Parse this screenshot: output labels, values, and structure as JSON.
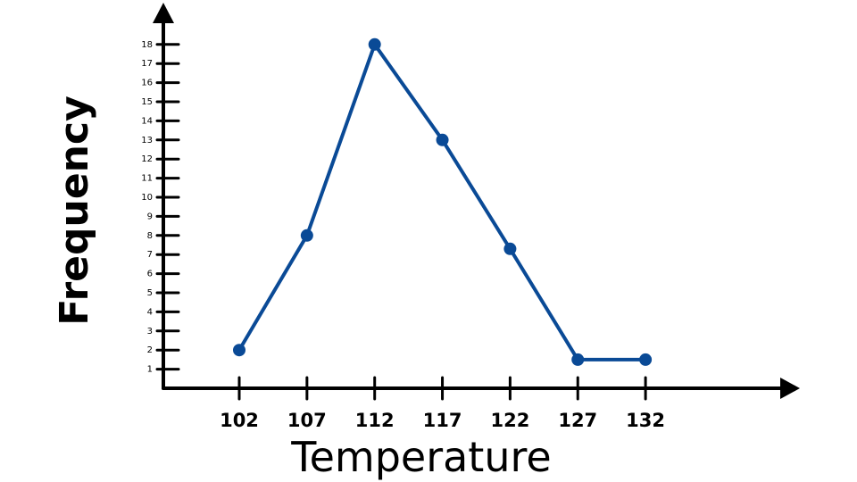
{
  "chart_data": {
    "type": "line",
    "title": "",
    "xlabel": "Temperature",
    "ylabel": "Frequency",
    "x": [
      102,
      107,
      112,
      117,
      122,
      127,
      132
    ],
    "x_tick_labels": [
      "102",
      "107",
      "112",
      "117",
      "122",
      "127",
      "132"
    ],
    "y_tick_labels": [
      "1",
      "2",
      "3",
      "4",
      "5",
      "6",
      "7",
      "8",
      "9",
      "10",
      "11",
      "12",
      "13",
      "14",
      "15",
      "16",
      "17",
      "18"
    ],
    "series": [
      {
        "values": [
          2,
          8,
          18,
          13,
          7.3,
          1.5,
          1.5
        ],
        "color": "#0a4a96"
      }
    ],
    "ylim": [
      0,
      18
    ],
    "grid": false,
    "legend": "none"
  },
  "colors": {
    "axis": "#000000",
    "series": "#0a4a96",
    "background": "#ffffff"
  }
}
